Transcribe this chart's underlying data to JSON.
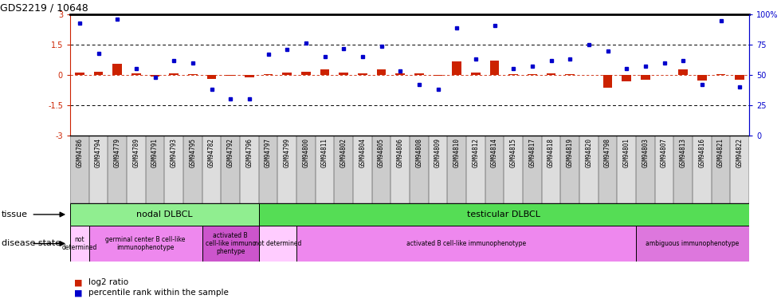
{
  "title": "GDS2219 / 10648",
  "samples": [
    "GSM94786",
    "GSM94794",
    "GSM94779",
    "GSM94789",
    "GSM94791",
    "GSM94793",
    "GSM94795",
    "GSM94782",
    "GSM94792",
    "GSM94796",
    "GSM94797",
    "GSM94799",
    "GSM94800",
    "GSM94811",
    "GSM94802",
    "GSM94804",
    "GSM94805",
    "GSM94806",
    "GSM94808",
    "GSM94809",
    "GSM94810",
    "GSM94812",
    "GSM94814",
    "GSM94815",
    "GSM94817",
    "GSM94818",
    "GSM94819",
    "GSM94820",
    "GSM94798",
    "GSM94801",
    "GSM94803",
    "GSM94807",
    "GSM94813",
    "GSM94816",
    "GSM94821",
    "GSM94822"
  ],
  "log2_ratio": [
    0.12,
    0.15,
    0.55,
    0.06,
    -0.06,
    0.06,
    0.03,
    -0.18,
    -0.05,
    -0.12,
    0.05,
    0.12,
    0.15,
    0.28,
    0.12,
    0.06,
    0.28,
    0.06,
    0.06,
    -0.04,
    0.68,
    0.1,
    0.72,
    0.03,
    0.03,
    0.06,
    0.05,
    0.0,
    -0.62,
    -0.32,
    -0.22,
    0.0,
    0.28,
    -0.28,
    0.03,
    -0.22
  ],
  "percentile": [
    93,
    68,
    96,
    55,
    48,
    62,
    60,
    38,
    30,
    30,
    67,
    71,
    76,
    65,
    72,
    65,
    74,
    53,
    42,
    38,
    89,
    63,
    91,
    55,
    57,
    62,
    63,
    75,
    70,
    55,
    57,
    60,
    62,
    42,
    95,
    40
  ],
  "tissue_groups": [
    {
      "label": "nodal DLBCL",
      "start": 0,
      "end": 9,
      "color": "#90ee90"
    },
    {
      "label": "testicular DLBCL",
      "start": 10,
      "end": 35,
      "color": "#55dd55"
    }
  ],
  "disease_groups": [
    {
      "label": "not\ndetermined",
      "start": 0,
      "end": 0,
      "color": "#ffccff"
    },
    {
      "label": "germinal center B cell-like\nimmunophenotype",
      "start": 1,
      "end": 6,
      "color": "#ee88ee"
    },
    {
      "label": "activated B\ncell-like immuno\nphentype",
      "start": 7,
      "end": 9,
      "color": "#cc55cc"
    },
    {
      "label": "not determined",
      "start": 10,
      "end": 11,
      "color": "#ffccff"
    },
    {
      "label": "activated B cell-like immunophenotype",
      "start": 12,
      "end": 29,
      "color": "#ee88ee"
    },
    {
      "label": "ambiguous immunophenotype",
      "start": 30,
      "end": 35,
      "color": "#dd77dd"
    }
  ],
  "ylim_left": [
    -3,
    3
  ],
  "bar_color": "#cc2200",
  "dot_color": "#0000cc",
  "left_yticks": [
    -3,
    -1.5,
    0,
    1.5,
    3
  ],
  "left_yticklabels": [
    "-3",
    "-1.5",
    "0",
    "1.5",
    "3"
  ],
  "right_yticks": [
    0,
    25,
    50,
    75,
    100
  ],
  "right_yticklabels": [
    "0",
    "25",
    "50",
    "75",
    "100%"
  ]
}
